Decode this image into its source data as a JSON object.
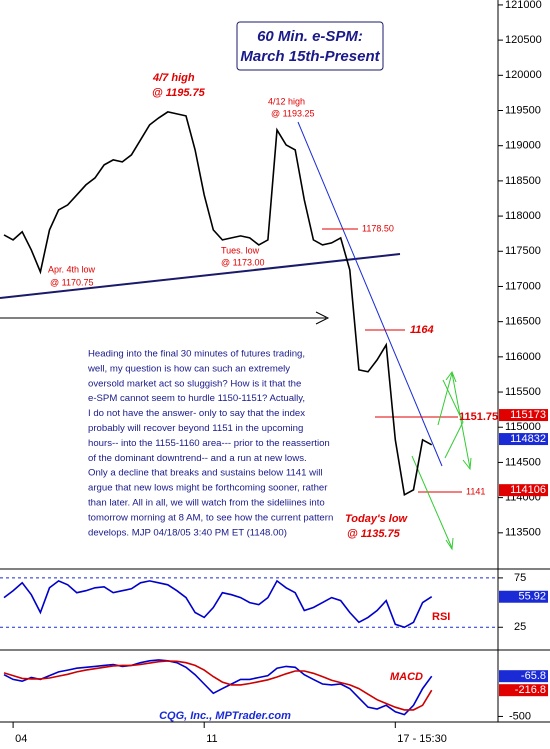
{
  "chart_data": [
    {
      "type": "line",
      "categories": [
        null,
        "04",
        null,
        null,
        null,
        null,
        null,
        null,
        null,
        null,
        null,
        null,
        null,
        null,
        null,
        null,
        null,
        null,
        null,
        null,
        null,
        null,
        "11",
        null,
        null,
        null,
        null,
        null,
        null,
        null,
        null,
        null,
        null,
        null,
        null,
        null,
        null,
        null,
        null,
        null,
        null,
        null,
        null,
        "17 - 15:30",
        null,
        null,
        null,
        null
      ],
      "values": [
        117733,
        117662,
        117776,
        117520,
        117207,
        117804,
        118088,
        118159,
        118301,
        118443,
        118543,
        118727,
        118798,
        118770,
        118869,
        119082,
        119295,
        119395,
        119480,
        119452,
        119423,
        118940,
        118301,
        117804,
        117662,
        117690,
        117719,
        117690,
        117591,
        117662,
        119224,
        119011,
        118940,
        118230,
        117662,
        117591,
        117619,
        117690,
        117236,
        115815,
        115787,
        115957,
        116170,
        114821,
        114040,
        114111,
        114821,
        114750
      ],
      "color": "#000000",
      "ylim": [
        113000,
        121070
      ],
      "yticks": [
        113500,
        114000,
        114500,
        115000,
        115500,
        116000,
        116500,
        117000,
        117500,
        118000,
        118500,
        119000,
        119500,
        120000,
        120500,
        121000
      ],
      "grid": false,
      "markers": [
        {
          "value": 115173,
          "color": "#e00000"
        },
        {
          "value": 114832,
          "color": "#1a2bd6"
        },
        {
          "value": 114106,
          "color": "#e00000"
        }
      ]
    },
    {
      "type": "line",
      "values": [
        55,
        62,
        70,
        58,
        40,
        65,
        72,
        68,
        60,
        62,
        65,
        66,
        60,
        62,
        64,
        70,
        72,
        70,
        68,
        62,
        55,
        40,
        35,
        45,
        60,
        58,
        55,
        50,
        48,
        55,
        72,
        65,
        60,
        42,
        45,
        50,
        55,
        52,
        40,
        30,
        35,
        42,
        52,
        28,
        25,
        30,
        50,
        55.92
      ],
      "color": "#0000cc",
      "ylim": [
        4,
        83
      ],
      "yticks": [
        25,
        75
      ],
      "grid": true,
      "markers": [
        {
          "value": 55.92,
          "color": "#1a2bd6"
        }
      ]
    },
    {
      "type": "line",
      "series": [
        {
          "color": "#0000cc",
          "values": [
            -50,
            -100,
            -120,
            -80,
            -100,
            -60,
            -20,
            0,
            20,
            30,
            40,
            50,
            60,
            40,
            50,
            80,
            100,
            110,
            100,
            80,
            30,
            -50,
            -150,
            -250,
            -200,
            -150,
            -100,
            -100,
            -80,
            -60,
            20,
            40,
            30,
            -50,
            -100,
            -150,
            -160,
            -150,
            -200,
            -300,
            -400,
            -420,
            -380,
            -450,
            -480,
            -380,
            -200,
            -65.8
          ]
        },
        {
          "color": "#cc0000",
          "values": [
            -30,
            -60,
            -90,
            -95,
            -95,
            -85,
            -65,
            -45,
            -20,
            0,
            15,
            30,
            45,
            50,
            50,
            60,
            75,
            90,
            98,
            95,
            80,
            50,
            0,
            -70,
            -130,
            -160,
            -160,
            -145,
            -125,
            -105,
            -75,
            -40,
            -10,
            -10,
            -35,
            -70,
            -110,
            -135,
            -160,
            -200,
            -260,
            -320,
            -360,
            -400,
            -430,
            -430,
            -380,
            -216.8
          ]
        }
      ],
      "ylim": [
        -560,
        195
      ],
      "yticks": [
        -500
      ],
      "grid": false,
      "markers": [
        {
          "value": -65.8,
          "color": "#1a2bd6"
        },
        {
          "value": -216.8,
          "color": "#e00000"
        }
      ]
    }
  ],
  "title_box": [
    "60 Min. e-SPM:",
    "March 15th-Present"
  ],
  "annotations": [
    "4/7 high",
    "@ 1195.75",
    "4/12 high",
    "@ 1193.25",
    "1178.50",
    "Tues. low",
    "@ 1173.00",
    "Apr. 4th low",
    "@ 1170.75",
    "1164",
    "1151.75",
    "1141",
    "Today's low",
    "@ 1135.75",
    "RSI",
    "MACD"
  ],
  "commentary": [
    "Heading into the final 30 minutes of futures trading,",
    "well, my question is how can such an extremely",
    "oversold market act so sluggish?  How is it that the",
    "e-SPM cannot seem to hurdle 1150-1151?  Actually,",
    "I do not have the answer- only to say that the index",
    "probably will recover beyond 1151 in the upcoming",
    "hours-- into the 1155-1160 area--- prior to the reassertion",
    "of the dominant downtrend-- and a run at new lows.",
    "Only a decline that breaks and sustains below 1141 will",
    "argue that new lows might be forthcoming sooner, rather",
    "than later.  All in all, we will watch from the sideliines into",
    "tomorrow morning at 8 AM, to see how the current pattern",
    "develops.  MJP 04/18/05  3:40 PM ET (1148.00)"
  ],
  "credit": "CQG, Inc., MPTrader.com"
}
